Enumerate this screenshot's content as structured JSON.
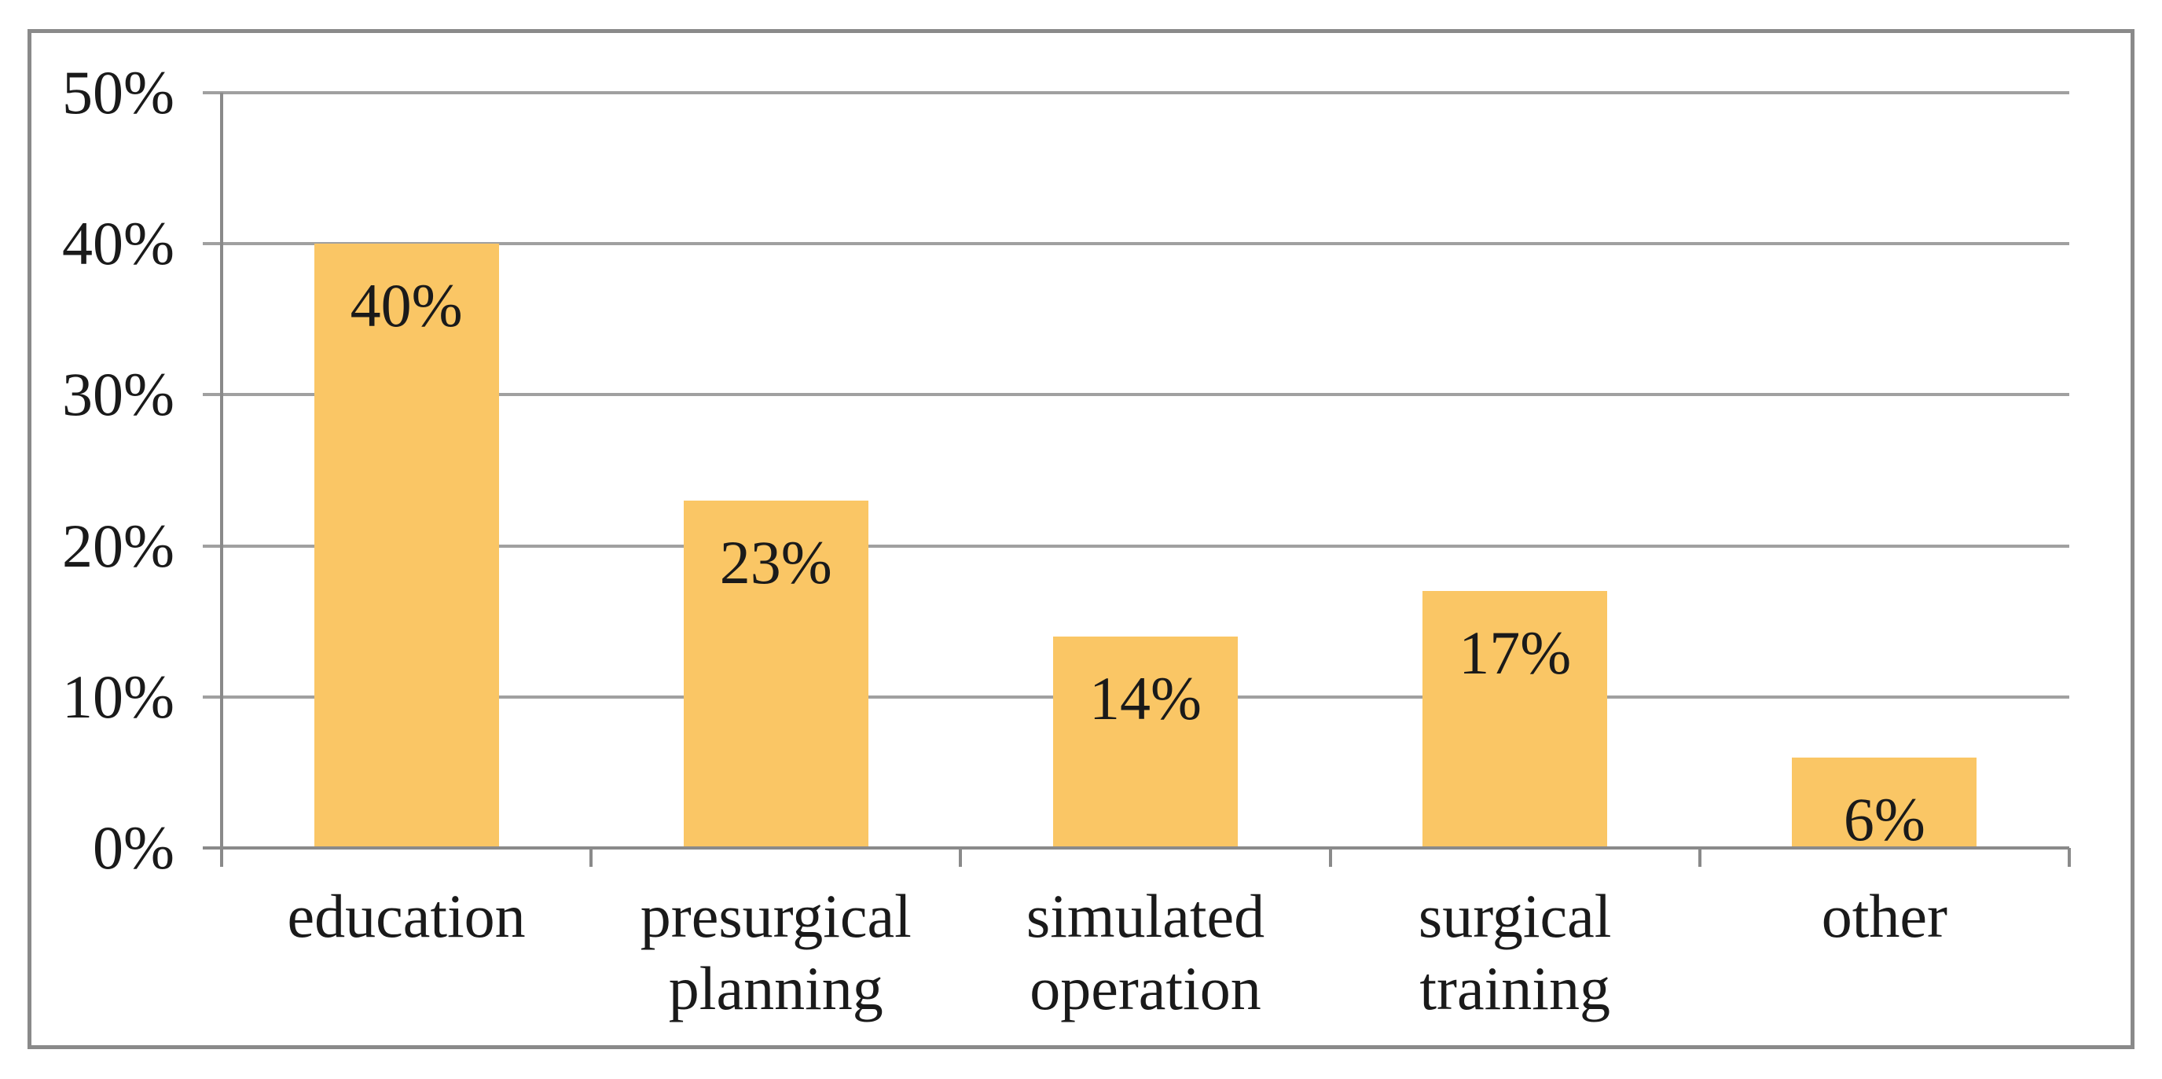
{
  "figure": {
    "background": "#FFFFFF",
    "title": "",
    "xlabel": "",
    "ylabel": ""
  },
  "chart_data": {
    "type": "bar",
    "categories": [
      "education",
      "presurgical planning",
      "simulated operation",
      "surgical training",
      "other"
    ],
    "values": [
      40,
      23,
      14,
      17,
      6
    ],
    "bar_labels": [
      "40%",
      "23%",
      "14%",
      "17%",
      "6%"
    ],
    "y_tick_labels": [
      "0%",
      "10%",
      "20%",
      "30%",
      "40%",
      "50%"
    ],
    "ylim": [
      0,
      50
    ],
    "y_tick_step": 10,
    "grid": "horizontal",
    "legend": "none",
    "title": "",
    "xlabel": "",
    "ylabel": "",
    "colors": {
      "bar_fill": "#FAC665",
      "gridline": "#A0A0A0",
      "axis_line": "#8A8A8A",
      "frame_border": "#8A8A8A",
      "text": "#1A1A1A"
    }
  }
}
